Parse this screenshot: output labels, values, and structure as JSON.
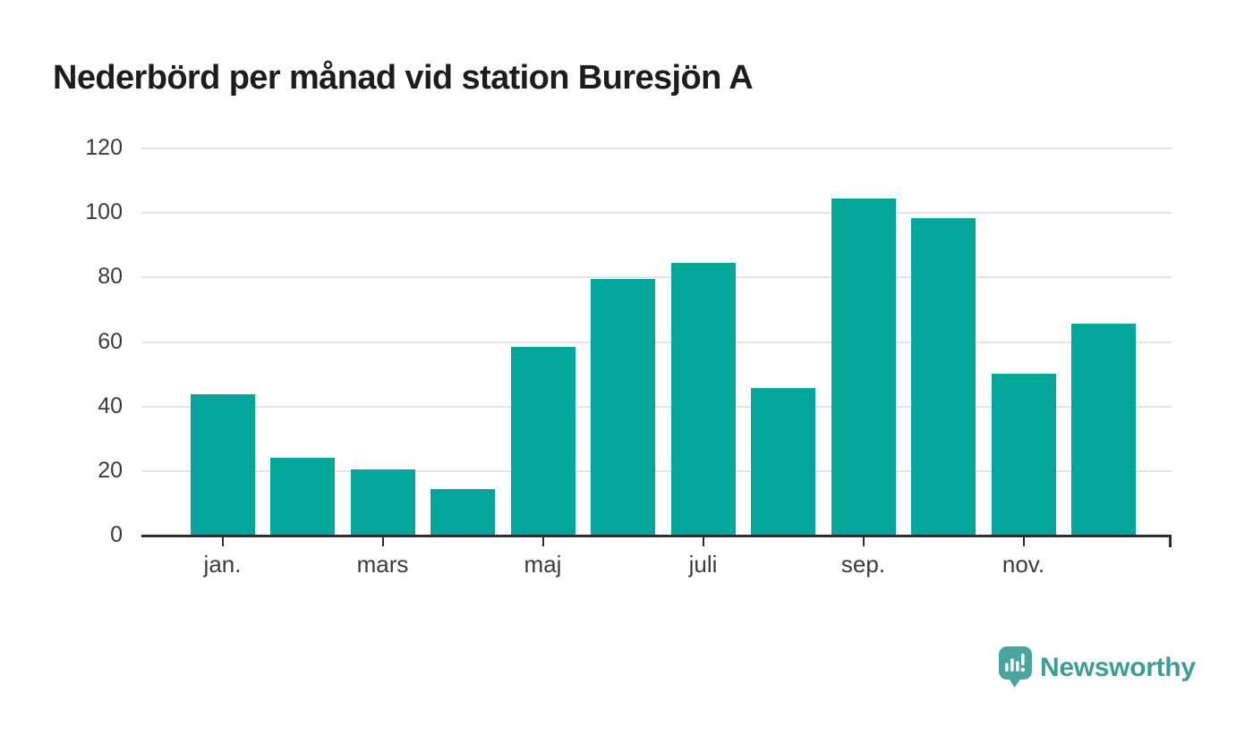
{
  "chart_data": {
    "type": "bar",
    "title": "Nederbörd per månad vid station Buresjön A",
    "n_bars": 12,
    "values": [
      43.9,
      24.1,
      20.6,
      14.4,
      58.4,
      79.5,
      84.6,
      45.7,
      104.6,
      98.5,
      50.2,
      65.8
    ],
    "x_ticks": [
      {
        "label": "jan.",
        "bar_index": 0
      },
      {
        "label": "mars",
        "bar_index": 2
      },
      {
        "label": "maj",
        "bar_index": 4
      },
      {
        "label": "juli",
        "bar_index": 6
      },
      {
        "label": "sep.",
        "bar_index": 8
      },
      {
        "label": "nov.",
        "bar_index": 10
      }
    ],
    "y_ticks": [
      0,
      20,
      40,
      60,
      80,
      100,
      120
    ],
    "ylim": [
      0,
      120
    ],
    "xlabel": "",
    "ylabel": "",
    "grid": "horizontal",
    "legend_position": "none"
  },
  "colors": {
    "bar": "#04a59a",
    "axis": "#2e2e2e",
    "gridline": "#e4e4e4",
    "axis_text": "#3b3b3b",
    "title_text": "#1d1d1d",
    "brand_text": "#3d9c96",
    "brand_icon": "#4aa5a0"
  },
  "branding": {
    "text": "Newsworthy",
    "icon": "newsworthy-speech-bubble-bar-chart-icon"
  }
}
